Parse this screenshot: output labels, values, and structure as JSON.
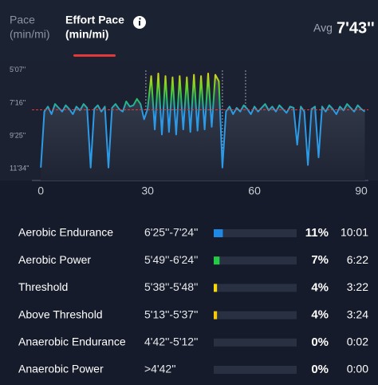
{
  "tabs": [
    {
      "title": "Pace",
      "unit": "(min/mi)",
      "active": false
    },
    {
      "title": "Effort Pace",
      "unit": "(min/mi)",
      "active": true
    }
  ],
  "avg": {
    "label": "Avg",
    "value": "7'43''"
  },
  "chart_data": {
    "type": "line",
    "x": [
      0,
      1,
      2,
      3,
      4,
      5,
      6,
      7,
      8,
      9,
      10,
      11,
      12,
      13,
      14,
      15,
      16,
      17,
      18,
      19,
      20,
      21,
      22,
      23,
      24,
      25,
      26,
      27,
      28,
      29,
      30,
      31,
      32,
      33,
      34,
      35,
      36,
      37,
      38,
      39,
      40,
      41,
      42,
      43,
      44,
      45,
      46,
      47,
      48,
      49,
      50,
      51,
      52,
      53,
      54,
      55,
      56,
      57,
      58,
      59,
      60,
      61,
      62,
      63,
      64,
      65,
      66,
      67,
      68,
      69,
      70,
      71,
      72,
      73,
      74,
      75,
      76,
      77,
      78,
      79,
      80,
      81,
      82,
      83,
      84,
      85,
      86,
      87,
      88,
      89,
      90,
      91
    ],
    "series": [
      {
        "color": "#2b9be8",
        "values": [
          690,
          470,
          450,
          480,
          440,
          455,
          470,
          445,
          460,
          480,
          450,
          465,
          440,
          455,
          690,
          460,
          445,
          470,
          450,
          690,
          455,
          440,
          460,
          470,
          430,
          450,
          445,
          420,
          440,
          500,
          460,
          330,
          540,
          320,
          560,
          330,
          550,
          335,
          560,
          330,
          540,
          335,
          550,
          325,
          545,
          330,
          540,
          320,
          530,
          325,
          350,
          690,
          470,
          450,
          480,
          455,
          470,
          445,
          460,
          480,
          450,
          470,
          455,
          440,
          465,
          450,
          470,
          445,
          460,
          475,
          450,
          455,
          600,
          450,
          470,
          680,
          460,
          450,
          650,
          450,
          470,
          445,
          460,
          480,
          450,
          465,
          440,
          455,
          470,
          445,
          460,
          470
        ]
      }
    ],
    "xlim": [
      -2.5,
      92
    ],
    "xticks": [
      0,
      30,
      60,
      90
    ],
    "ylim": [
      741,
      276
    ],
    "yticks": [
      {
        "value": 307,
        "label": "5'07''"
      },
      {
        "value": 436,
        "label": "7'16''"
      },
      {
        "value": 565,
        "label": "9'25''"
      },
      {
        "value": 694,
        "label": "11'34''"
      }
    ],
    "avg_line": 463,
    "vlines": [
      29.5,
      51,
      57.5
    ],
    "grid": false
  },
  "zones": {
    "rows": [
      {
        "name": "Aerobic Endurance",
        "range": "6'25''-7'24''",
        "percent": 11,
        "percent_label": "11%",
        "time": "10:01",
        "color": "#1e88e5"
      },
      {
        "name": "Aerobic Power",
        "range": "5'49''-6'24''",
        "percent": 7,
        "percent_label": "7%",
        "time": "6:22",
        "color": "#22cc44"
      },
      {
        "name": "Threshold",
        "range": "5'38''-5'48''",
        "percent": 4,
        "percent_label": "4%",
        "time": "3:22",
        "color": "#f5d90a"
      },
      {
        "name": "Above Threshold",
        "range": "5'13''-5'37''",
        "percent": 4,
        "percent_label": "4%",
        "time": "3:24",
        "color": "#f5c80a"
      },
      {
        "name": "Anaerobic Endurance",
        "range": "4'42''-5'12''",
        "percent": 0,
        "percent_label": "0%",
        "time": "0:02",
        "color": "#f59a0a"
      },
      {
        "name": "Anaerobic Power",
        "range": ">4'42''",
        "percent": 0,
        "percent_label": "0%",
        "time": "0:00",
        "color": "#f5620a"
      }
    ]
  }
}
